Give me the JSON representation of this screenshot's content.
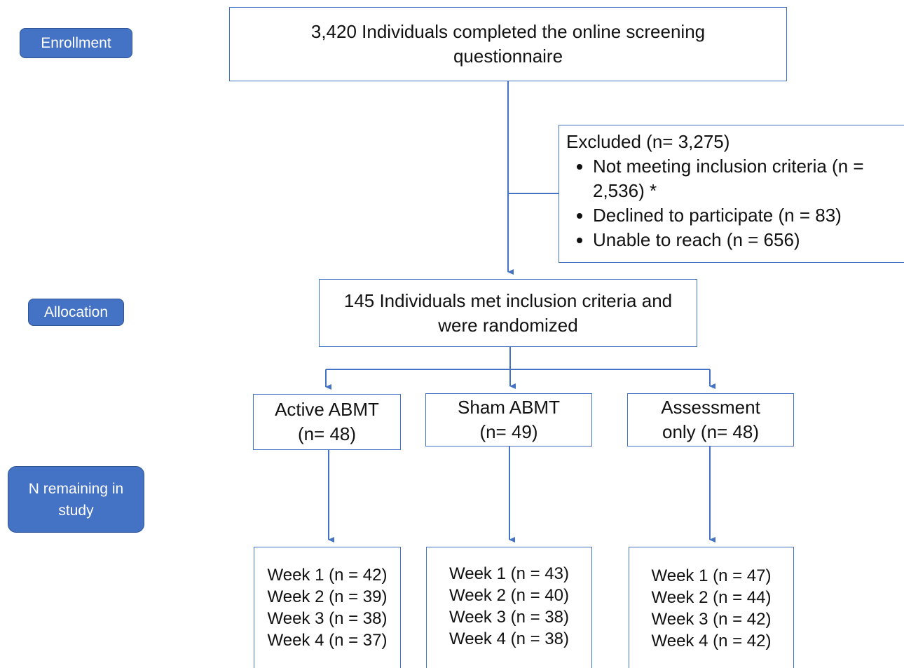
{
  "stages": [
    "Enrollment",
    "Allocation",
    "N remaining in study"
  ],
  "screening": "3,420 Individuals completed the online screening questionnaire",
  "excluded": {
    "title": "Excluded (n= 3,275)",
    "items": [
      "Not meeting inclusion criteria (n = 2,536) *",
      "Declined to participate (n = 83)",
      "Unable to reach (n = 656)"
    ]
  },
  "randomized": "145 Individuals met inclusion criteria and were randomized",
  "arms": [
    {
      "label": "Active ABMT (n= 48)",
      "weeks": [
        "Week 1 (n = 42)",
        "Week 2 (n = 39)",
        "Week 3 (n = 38)",
        "Week 4 (n = 37)"
      ]
    },
    {
      "label": "Sham ABMT (n= 49)",
      "weeks": [
        "Week 1 (n = 43)",
        "Week 2 (n = 40)",
        "Week 3 (n = 38)",
        "Week 4 (n = 38)"
      ]
    },
    {
      "label": "Assessment only (n= 48)",
      "weeks": [
        "Week 1 (n = 47)",
        "Week 2 (n = 44)",
        "Week 3 (n = 42)",
        "Week 4 (n = 42)"
      ]
    }
  ]
}
